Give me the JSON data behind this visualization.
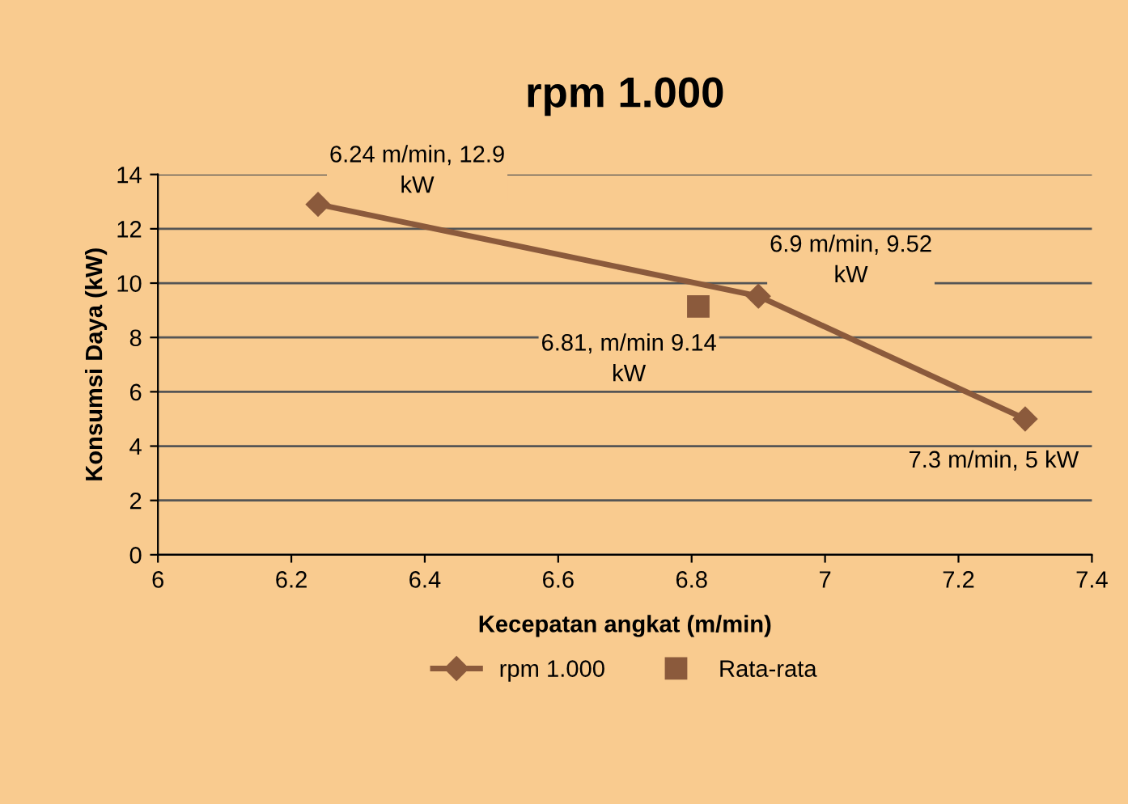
{
  "chart_data": {
    "type": "line",
    "title": "rpm 1.000",
    "xlabel": "Kecepatan angkat (m/min)",
    "ylabel": "Konsumsi Daya (kW)",
    "xlim": [
      6,
      7.4
    ],
    "xticks": [
      6,
      6.2,
      6.4,
      6.6,
      6.8,
      7,
      7.2,
      7.4
    ],
    "ylim": [
      0,
      14
    ],
    "yticks": [
      0,
      2,
      4,
      6,
      8,
      10,
      12,
      14
    ],
    "grid": "y",
    "legend": "bottom",
    "series": [
      {
        "name": "rpm 1.000",
        "color": "#8b5a3c",
        "marker": "diamond",
        "x": [
          6.24,
          6.9,
          7.3
        ],
        "values": [
          12.9,
          9.52,
          5
        ],
        "value_labels": [
          "6.24 m/min, 12.9\nkW",
          "6.9 m/min, 9.52\nkW",
          "7.3 m/min, 5 kW"
        ]
      },
      {
        "name": "Rata-rata",
        "type": "scatter",
        "color": "#8b5a3c",
        "marker": "square",
        "x": [
          6.81
        ],
        "values": [
          9.14
        ],
        "value_labels": [
          "6.81, m/min 9.14\nkW"
        ]
      }
    ]
  }
}
